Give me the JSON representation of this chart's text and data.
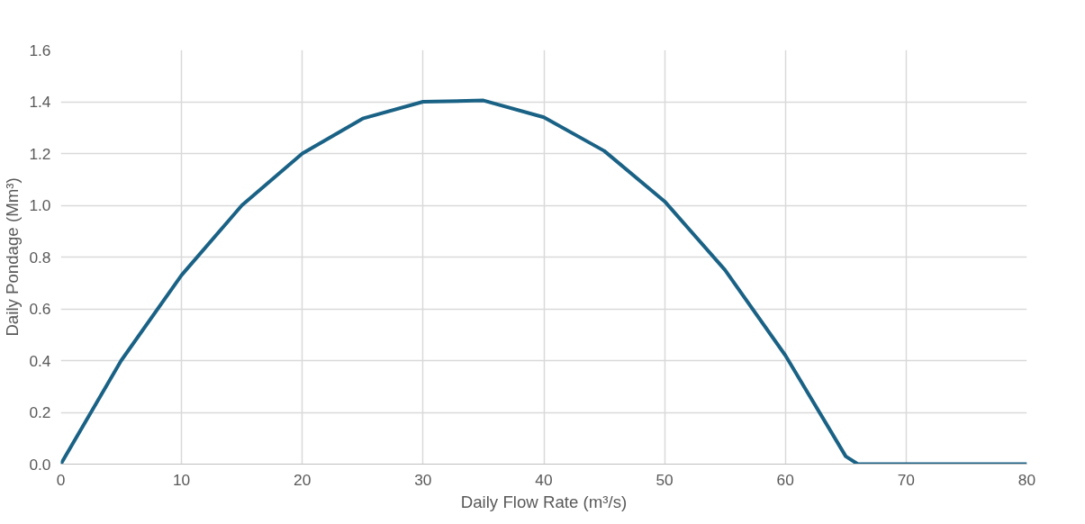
{
  "chart_data": {
    "type": "line",
    "xlabel": "Daily Flow Rate (m³/s)",
    "ylabel": "Daily Pondage (Mm³)",
    "x": [
      0,
      5,
      10,
      15,
      20,
      25,
      30,
      35,
      40,
      45,
      50,
      55,
      60,
      65,
      66,
      70,
      75,
      80
    ],
    "series": [
      {
        "color": "#1a6285",
        "values": [
          0,
          0.4,
          0.73,
          1.0,
          1.2,
          1.335,
          1.4,
          1.405,
          1.34,
          1.21,
          1.015,
          0.75,
          0.42,
          0.03,
          0,
          0,
          0,
          0
        ]
      }
    ],
    "xlim": [
      0,
      80
    ],
    "xticks": [
      0,
      10,
      20,
      30,
      40,
      50,
      60,
      70,
      80
    ],
    "ylim": [
      0,
      1.6
    ],
    "yticks": [
      {
        "value": 0,
        "label": "0.0"
      },
      {
        "value": 0.2,
        "label": "0.2"
      },
      {
        "value": 0.4,
        "label": "0.4"
      },
      {
        "value": 0.6,
        "label": "0.6"
      },
      {
        "value": 0.8,
        "label": "0.8"
      },
      {
        "value": 1.0,
        "label": "1.0"
      },
      {
        "value": 1.2,
        "label": "1.2"
      },
      {
        "value": 1.4,
        "label": "1.4"
      },
      {
        "value": 1.6,
        "label": "1.6"
      }
    ],
    "grid": true,
    "marker": "none",
    "line_style": "solid"
  }
}
